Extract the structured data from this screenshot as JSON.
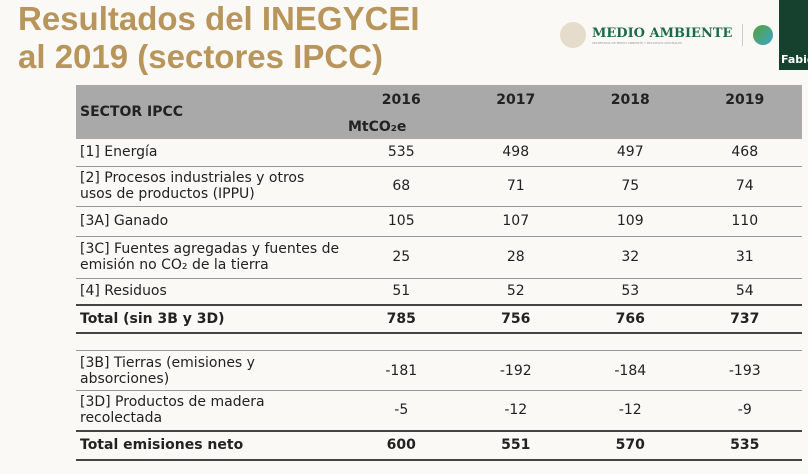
{
  "title": [
    "Resultados del INEGYCEI",
    "al 2019 (sectores IPCC)"
  ],
  "logo": {
    "text": "MEDIO AMBIENTE",
    "subtitle": "SECRETARÍA DE MEDIO AMBIENTE Y RECURSOS NATURALES"
  },
  "video_participant": "Fabio",
  "table": {
    "header": [
      "SECTOR IPCC",
      "2016",
      "2017",
      "2018",
      "2019"
    ],
    "unit": "MtCO₂e",
    "rows": [
      [
        "[1] Energía",
        "535",
        "498",
        "497",
        "468"
      ],
      [
        "[2] Procesos industriales y otros usos de productos (IPPU)",
        "68",
        "71",
        "75",
        "74"
      ],
      [
        "[3A] Ganado",
        "105",
        "107",
        "109",
        "110"
      ],
      [
        "[3C] Fuentes agregadas y fuentes de emisión no CO₂ de la tierra",
        "25",
        "28",
        "32",
        "31"
      ],
      [
        "[4] Residuos",
        "51",
        "52",
        "53",
        "54"
      ]
    ],
    "total": [
      "Total (sin 3B y 3D)",
      "785",
      "756",
      "766",
      "737"
    ],
    "rows2": [
      [
        "[3B] Tierras (emisiones y absorciones)",
        "-181",
        "-192",
        "-184",
        "-193"
      ],
      [
        "[3D] Productos de madera recolectada",
        "-5",
        "-12",
        "-12",
        "-9"
      ]
    ],
    "total_neto": [
      "Total emisiones neto",
      "600",
      "551",
      "570",
      "535"
    ]
  }
}
